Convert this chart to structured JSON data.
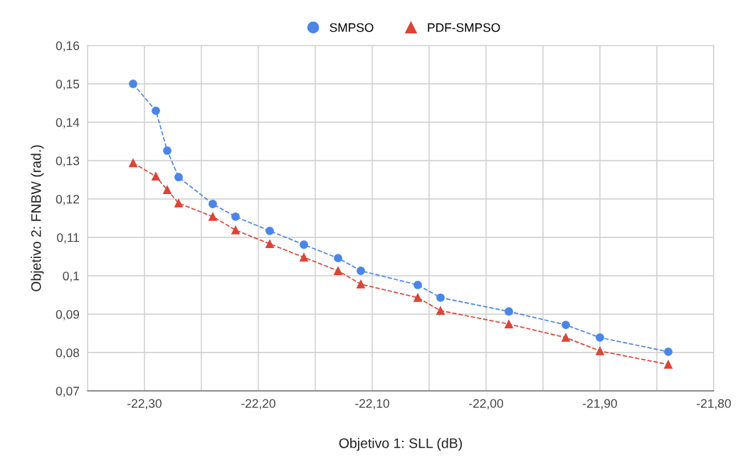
{
  "chart_data": {
    "type": "line",
    "xlabel": "Objetivo 1: SLL (dB)",
    "ylabel": "Objetivo 2: FNBW (rad.)",
    "xlim": [
      -22.35,
      -21.8
    ],
    "xticks": [
      {
        "value": -22.35,
        "label": null
      },
      {
        "value": -22.3,
        "label": "-22,30"
      },
      {
        "value": -22.25,
        "label": null
      },
      {
        "value": -22.2,
        "label": "-22,20"
      },
      {
        "value": -22.15,
        "label": null
      },
      {
        "value": -22.1,
        "label": "-22,10"
      },
      {
        "value": -22.05,
        "label": null
      },
      {
        "value": -22.0,
        "label": "-22,00"
      },
      {
        "value": -21.95,
        "label": null
      },
      {
        "value": -21.9,
        "label": "-21,90"
      },
      {
        "value": -21.85,
        "label": null
      },
      {
        "value": -21.8,
        "label": "-21,80"
      }
    ],
    "ylim": [
      0.07,
      0.16
    ],
    "yticks": [
      {
        "value": 0.07,
        "label": "0,07"
      },
      {
        "value": 0.08,
        "label": "0,08"
      },
      {
        "value": 0.09,
        "label": "0,09"
      },
      {
        "value": 0.1,
        "label": "0,1"
      },
      {
        "value": 0.11,
        "label": "0,11"
      },
      {
        "value": 0.12,
        "label": "0,12"
      },
      {
        "value": 0.13,
        "label": "0,13"
      },
      {
        "value": 0.14,
        "label": "0,14"
      },
      {
        "value": 0.15,
        "label": "0,15"
      },
      {
        "value": 0.16,
        "label": "0,16"
      }
    ],
    "grid": true,
    "legend": "top",
    "line_style": "dashed",
    "series": [
      {
        "name": "SMPSO",
        "color": "#4a86e8",
        "marker": "circle",
        "x": [
          -22.31,
          -22.29,
          -22.28,
          -22.27,
          -22.24,
          -22.22,
          -22.19,
          -22.16,
          -22.13,
          -22.11,
          -22.06,
          -22.04,
          -21.98,
          -21.93,
          -21.9,
          -21.84
        ],
        "values": [
          0.15,
          0.143,
          0.1326,
          0.1257,
          0.1187,
          0.1154,
          0.1117,
          0.1081,
          0.1046,
          0.1013,
          0.0976,
          0.0943,
          0.0907,
          0.0872,
          0.0839,
          0.0802
        ]
      },
      {
        "name": "PDF-SMPSO",
        "color": "#db4437",
        "marker": "triangle",
        "x": [
          -22.31,
          -22.29,
          -22.28,
          -22.27,
          -22.24,
          -22.22,
          -22.19,
          -22.16,
          -22.13,
          -22.11,
          -22.06,
          -22.04,
          -21.98,
          -21.93,
          -21.9,
          -21.84
        ],
        "values": [
          0.1294,
          0.1259,
          0.1224,
          0.1189,
          0.1154,
          0.1119,
          0.1083,
          0.1048,
          0.1013,
          0.0978,
          0.0943,
          0.0909,
          0.0874,
          0.0839,
          0.0804,
          0.0769
        ]
      }
    ]
  }
}
